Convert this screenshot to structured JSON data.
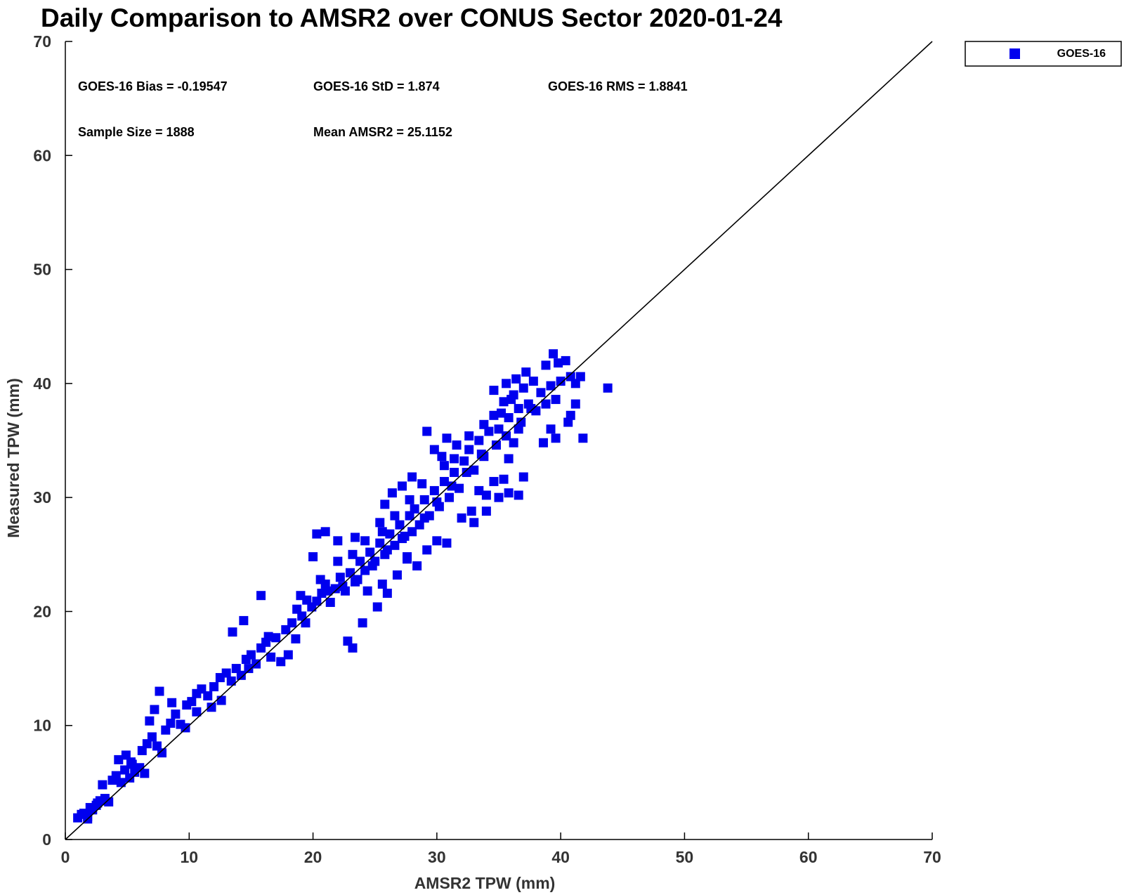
{
  "chart_data": {
    "type": "scatter",
    "title": "Daily Comparison to AMSR2 over CONUS Sector 2020-01-24",
    "xlabel": "AMSR2 TPW (mm)",
    "ylabel": "Measured TPW (mm)",
    "xlim": [
      0,
      70
    ],
    "ylim": [
      0,
      70
    ],
    "xticks": [
      0,
      10,
      20,
      30,
      40,
      50,
      60,
      70
    ],
    "yticks": [
      0,
      10,
      20,
      30,
      40,
      50,
      60,
      70
    ],
    "grid": false,
    "legend_position": "top-right (outside plot)",
    "reference_line": {
      "from": [
        0,
        0
      ],
      "to": [
        70,
        70
      ],
      "color": "#000000"
    },
    "stats": {
      "bias": "GOES-16 Bias = -0.19547",
      "std": "GOES-16 StD = 1.874",
      "rms": "GOES-16 RMS = 1.8841",
      "sample_size": "Sample Size = 1888",
      "mean": "Mean AMSR2 = 25.1152"
    },
    "series": [
      {
        "name": "GOES-16",
        "color": "#0000ee",
        "marker": "square",
        "points": [
          [
            1.0,
            1.9
          ],
          [
            1.5,
            2.3
          ],
          [
            1.8,
            2.0
          ],
          [
            2.2,
            2.6
          ],
          [
            2.5,
            3.0
          ],
          [
            2.8,
            3.4
          ],
          [
            3.2,
            3.6
          ],
          [
            3.5,
            3.3
          ],
          [
            2.0,
            2.8
          ],
          [
            1.3,
            2.2
          ],
          [
            3.8,
            5.2
          ],
          [
            4.1,
            5.6
          ],
          [
            4.5,
            5.0
          ],
          [
            4.8,
            6.1
          ],
          [
            5.2,
            5.4
          ],
          [
            5.6,
            5.9
          ],
          [
            6.0,
            6.3
          ],
          [
            4.3,
            7.0
          ],
          [
            4.9,
            7.4
          ],
          [
            5.3,
            6.8
          ],
          [
            6.2,
            7.8
          ],
          [
            6.6,
            8.4
          ],
          [
            7.0,
            9.0
          ],
          [
            7.4,
            8.2
          ],
          [
            7.8,
            7.6
          ],
          [
            8.1,
            9.6
          ],
          [
            8.5,
            10.2
          ],
          [
            6.8,
            10.4
          ],
          [
            7.2,
            11.4
          ],
          [
            7.6,
            13.0
          ],
          [
            8.9,
            11.0
          ],
          [
            9.3,
            10.1
          ],
          [
            9.7,
            9.8
          ],
          [
            10.2,
            12.1
          ],
          [
            10.6,
            12.8
          ],
          [
            11.0,
            13.2
          ],
          [
            11.5,
            12.6
          ],
          [
            12.0,
            13.4
          ],
          [
            12.5,
            14.2
          ],
          [
            13.0,
            14.6
          ],
          [
            13.4,
            13.9
          ],
          [
            13.8,
            15.0
          ],
          [
            14.2,
            14.4
          ],
          [
            14.6,
            15.8
          ],
          [
            15.0,
            16.2
          ],
          [
            15.4,
            15.4
          ],
          [
            15.8,
            16.8
          ],
          [
            16.2,
            17.3
          ],
          [
            16.6,
            16.0
          ],
          [
            17.0,
            17.7
          ],
          [
            13.5,
            18.2
          ],
          [
            14.4,
            19.2
          ],
          [
            15.8,
            21.4
          ],
          [
            17.4,
            15.6
          ],
          [
            18.0,
            16.2
          ],
          [
            18.3,
            19.0
          ],
          [
            18.7,
            20.2
          ],
          [
            19.1,
            19.6
          ],
          [
            19.5,
            21.0
          ],
          [
            19.9,
            20.4
          ],
          [
            20.3,
            20.9
          ],
          [
            20.7,
            21.6
          ],
          [
            21.0,
            22.4
          ],
          [
            21.4,
            20.8
          ],
          [
            21.8,
            22.0
          ],
          [
            22.2,
            23.0
          ],
          [
            22.6,
            21.8
          ],
          [
            23.0,
            23.4
          ],
          [
            23.4,
            22.6
          ],
          [
            23.8,
            24.4
          ],
          [
            24.2,
            23.6
          ],
          [
            24.6,
            25.2
          ],
          [
            25.0,
            24.4
          ],
          [
            25.4,
            26.0
          ],
          [
            25.8,
            25.0
          ],
          [
            26.2,
            26.8
          ],
          [
            26.6,
            25.8
          ],
          [
            27.0,
            27.6
          ],
          [
            27.4,
            26.6
          ],
          [
            27.8,
            28.4
          ],
          [
            20.0,
            24.8
          ],
          [
            20.3,
            26.8
          ],
          [
            21.0,
            27.0
          ],
          [
            22.0,
            26.2
          ],
          [
            23.4,
            26.5
          ],
          [
            22.8,
            17.4
          ],
          [
            23.2,
            16.8
          ],
          [
            24.0,
            19.0
          ],
          [
            25.2,
            20.4
          ],
          [
            26.0,
            21.6
          ],
          [
            28.2,
            29.0
          ],
          [
            28.6,
            27.6
          ],
          [
            29.0,
            29.8
          ],
          [
            29.4,
            28.4
          ],
          [
            29.8,
            30.6
          ],
          [
            30.2,
            29.2
          ],
          [
            30.6,
            31.4
          ],
          [
            31.0,
            30.0
          ],
          [
            31.4,
            32.2
          ],
          [
            31.8,
            30.8
          ],
          [
            25.4,
            27.8
          ],
          [
            25.8,
            29.4
          ],
          [
            26.4,
            30.4
          ],
          [
            27.2,
            31.0
          ],
          [
            28.0,
            31.8
          ],
          [
            27.6,
            24.6
          ],
          [
            28.4,
            24.0
          ],
          [
            29.2,
            25.4
          ],
          [
            30.0,
            26.2
          ],
          [
            30.8,
            26.0
          ],
          [
            29.8,
            34.2
          ],
          [
            30.4,
            33.6
          ],
          [
            29.2,
            35.8
          ],
          [
            30.8,
            35.2
          ],
          [
            31.6,
            34.6
          ],
          [
            32.2,
            33.2
          ],
          [
            32.6,
            34.2
          ],
          [
            33.0,
            32.4
          ],
          [
            33.4,
            35.0
          ],
          [
            33.8,
            33.6
          ],
          [
            32.0,
            28.2
          ],
          [
            32.8,
            28.8
          ],
          [
            33.4,
            30.6
          ],
          [
            34.0,
            30.2
          ],
          [
            34.6,
            31.4
          ],
          [
            35.0,
            30.0
          ],
          [
            35.4,
            31.6
          ],
          [
            35.8,
            33.4
          ],
          [
            36.2,
            34.8
          ],
          [
            36.6,
            36.0
          ],
          [
            34.2,
            35.8
          ],
          [
            34.6,
            37.2
          ],
          [
            35.0,
            36.0
          ],
          [
            35.4,
            38.4
          ],
          [
            35.8,
            37.0
          ],
          [
            36.2,
            39.0
          ],
          [
            36.6,
            37.8
          ],
          [
            37.0,
            39.6
          ],
          [
            37.4,
            38.2
          ],
          [
            37.8,
            40.2
          ],
          [
            34.6,
            39.4
          ],
          [
            35.6,
            40.0
          ],
          [
            36.4,
            40.4
          ],
          [
            37.2,
            41.0
          ],
          [
            38.0,
            37.6
          ],
          [
            38.4,
            39.2
          ],
          [
            38.8,
            38.2
          ],
          [
            39.2,
            39.8
          ],
          [
            39.6,
            38.6
          ],
          [
            40.0,
            40.2
          ],
          [
            39.4,
            42.6
          ],
          [
            39.8,
            41.8
          ],
          [
            40.4,
            42.0
          ],
          [
            38.8,
            41.6
          ],
          [
            40.8,
            40.6
          ],
          [
            41.2,
            40.0
          ],
          [
            41.6,
            40.6
          ],
          [
            41.2,
            38.2
          ],
          [
            40.6,
            36.6
          ],
          [
            40.8,
            37.2
          ],
          [
            41.8,
            35.2
          ],
          [
            39.6,
            35.2
          ],
          [
            39.2,
            36.0
          ],
          [
            38.6,
            34.8
          ],
          [
            43.8,
            39.6
          ],
          [
            36.6,
            30.2
          ],
          [
            37.0,
            31.8
          ],
          [
            35.8,
            30.4
          ],
          [
            34.0,
            28.8
          ],
          [
            33.0,
            27.8
          ],
          [
            9.8,
            11.8
          ],
          [
            10.6,
            11.2
          ],
          [
            8.6,
            12.0
          ],
          [
            11.8,
            11.6
          ],
          [
            12.6,
            12.2
          ],
          [
            14.8,
            15.0
          ],
          [
            16.4,
            17.8
          ],
          [
            17.8,
            18.4
          ],
          [
            18.6,
            17.6
          ],
          [
            19.4,
            19.0
          ],
          [
            21.2,
            21.8
          ],
          [
            22.4,
            22.2
          ],
          [
            23.6,
            22.8
          ],
          [
            24.8,
            24.0
          ],
          [
            26.0,
            25.4
          ],
          [
            27.2,
            26.4
          ],
          [
            28.0,
            27.0
          ],
          [
            29.0,
            28.2
          ],
          [
            30.0,
            29.6
          ],
          [
            31.2,
            31.0
          ],
          [
            32.4,
            32.2
          ],
          [
            33.6,
            33.8
          ],
          [
            34.8,
            34.6
          ],
          [
            35.6,
            35.4
          ],
          [
            36.8,
            36.6
          ],
          [
            37.6,
            37.8
          ],
          [
            24.4,
            21.8
          ],
          [
            25.6,
            22.4
          ],
          [
            26.8,
            23.2
          ],
          [
            27.6,
            24.8
          ],
          [
            19.0,
            21.4
          ],
          [
            20.6,
            22.8
          ],
          [
            22.0,
            24.4
          ],
          [
            23.2,
            25.0
          ],
          [
            24.2,
            26.2
          ],
          [
            25.6,
            27.0
          ],
          [
            26.6,
            28.4
          ],
          [
            27.8,
            29.8
          ],
          [
            28.8,
            31.2
          ],
          [
            30.6,
            32.8
          ],
          [
            31.4,
            33.4
          ],
          [
            32.6,
            35.4
          ],
          [
            33.8,
            36.4
          ],
          [
            35.2,
            37.4
          ],
          [
            36.0,
            38.6
          ],
          [
            5.4,
            6.6
          ],
          [
            6.4,
            5.8
          ],
          [
            3.0,
            4.8
          ],
          [
            2.6,
            3.2
          ],
          [
            1.8,
            1.8
          ]
        ]
      }
    ]
  }
}
